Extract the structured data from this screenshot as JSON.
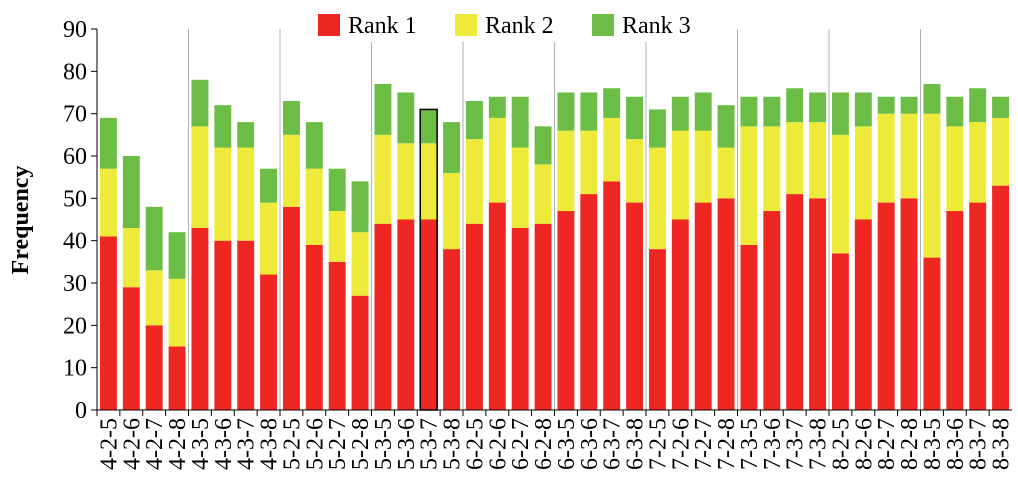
{
  "chart_data": {
    "type": "stacked_bar",
    "y_label": "Frequency",
    "categories": [
      "4-2-5",
      "4-2-6",
      "4-2-7",
      "4-2-8",
      "4-3-5",
      "4-3-6",
      "4-3-7",
      "4-3-8",
      "5-2-5",
      "5-2-6",
      "5-2-7",
      "5-2-8",
      "5-3-5",
      "5-3-6",
      "5-3-7",
      "5-3-8",
      "6-2-5",
      "6-2-6",
      "6-2-7",
      "6-2-8",
      "6-3-5",
      "6-3-6",
      "6-3-7",
      "6-3-8",
      "7-2-5",
      "7-2-6",
      "7-2-7",
      "7-2-8",
      "7-3-5",
      "7-3-6",
      "7-3-7",
      "7-3-8",
      "8-2-5",
      "8-2-6",
      "8-2-7",
      "8-2-8",
      "8-3-5",
      "8-3-6",
      "8-3-7",
      "8-3-8"
    ],
    "series": [
      {
        "name": "Rank 1",
        "color": "#ee2722",
        "values": [
          41,
          29,
          20,
          15,
          43,
          40,
          40,
          32,
          48,
          39,
          35,
          27,
          44,
          45,
          45,
          38,
          44,
          49,
          43,
          44,
          47,
          51,
          54,
          49,
          38,
          45,
          49,
          50,
          39,
          47,
          51,
          50,
          37,
          45,
          49,
          50,
          36,
          47,
          49,
          53
        ]
      },
      {
        "name": "Rank 2",
        "color": "#eeea3a",
        "values": [
          16,
          14,
          13,
          16,
          24,
          22,
          22,
          17,
          17,
          18,
          12,
          15,
          21,
          18,
          18,
          18,
          20,
          20,
          19,
          14,
          19,
          15,
          15,
          15,
          24,
          21,
          17,
          12,
          28,
          20,
          17,
          18,
          28,
          22,
          21,
          20,
          34,
          20,
          19,
          16
        ]
      },
      {
        "name": "Rank 3",
        "color": "#6cbd45",
        "values": [
          12,
          17,
          15,
          11,
          11,
          10,
          6,
          8,
          8,
          11,
          10,
          12,
          12,
          12,
          8,
          12,
          9,
          5,
          12,
          9,
          9,
          9,
          7,
          10,
          9,
          8,
          9,
          10,
          7,
          7,
          8,
          7,
          10,
          8,
          4,
          4,
          7,
          7,
          8,
          5
        ]
      }
    ],
    "highlight": "5-3-7",
    "ylim": [
      0,
      90
    ],
    "yticks": [
      0,
      10,
      20,
      30,
      40,
      50,
      60,
      70,
      80,
      90
    ],
    "group_size": 4,
    "legend": "top"
  }
}
